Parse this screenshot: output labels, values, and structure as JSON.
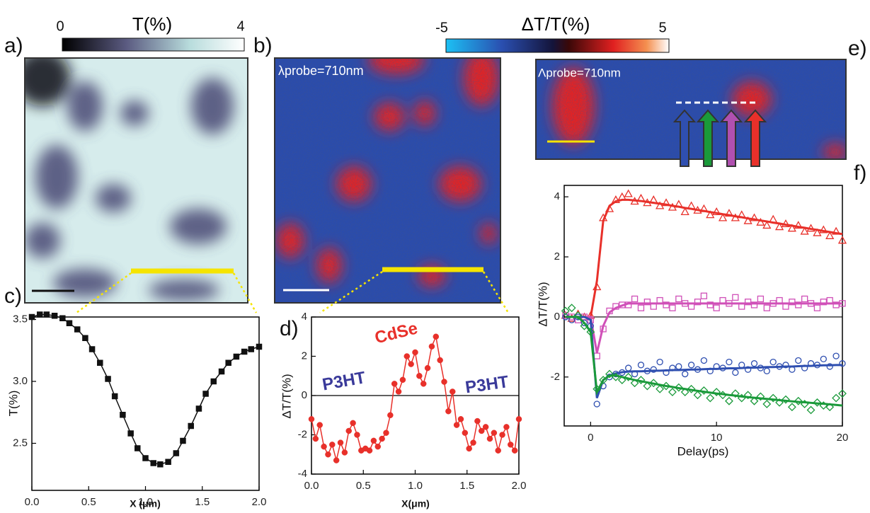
{
  "panel_labels": [
    "a)",
    "b)",
    "c)",
    "d)",
    "e)",
    "f)"
  ],
  "colorbars": [
    {
      "title": "T(%)",
      "ticks": [
        0,
        4
      ]
    },
    {
      "title": "ΔT/T(%)",
      "ticks": [
        -5,
        5
      ]
    }
  ],
  "image_labels": [
    "λprobe=710nm",
    "Λprobe=710nm"
  ],
  "chart_data": [
    {
      "type": "line",
      "xlabel": "X (μm)",
      "ylabel": "T(%)",
      "color": "#111111",
      "marker": "square",
      "marker_fill": "solid",
      "xlim": [
        0,
        2
      ],
      "ylim": [
        2.12,
        3.52
      ],
      "xticks": [
        {
          "value": 0,
          "label": "0.0"
        },
        0.5,
        {
          "value": 1,
          "label": "1.0"
        },
        1.5,
        {
          "value": 2,
          "label": "2.0"
        }
      ],
      "yticks": [
        2.5,
        {
          "value": 3,
          "label": "3.0"
        },
        3.5
      ],
      "x": [
        0.0,
        0.07,
        0.13,
        0.2,
        0.27,
        0.33,
        0.4,
        0.47,
        0.53,
        0.6,
        0.67,
        0.73,
        0.8,
        0.87,
        0.93,
        1.0,
        1.07,
        1.13,
        1.2,
        1.27,
        1.33,
        1.4,
        1.47,
        1.53,
        1.6,
        1.67,
        1.73,
        1.8,
        1.87,
        1.93,
        2.0
      ],
      "values": [
        3.52,
        3.54,
        3.54,
        3.53,
        3.51,
        3.47,
        3.42,
        3.35,
        3.26,
        3.15,
        3.02,
        2.88,
        2.73,
        2.58,
        2.46,
        2.38,
        2.34,
        2.33,
        2.35,
        2.42,
        2.52,
        2.64,
        2.78,
        2.9,
        3.0,
        3.08,
        3.15,
        3.2,
        3.24,
        3.26,
        3.28
      ]
    },
    {
      "type": "line",
      "xlabel": "X(μm)",
      "ylabel": "ΔT/T(%)",
      "color": "#e8302a",
      "marker": "circle",
      "marker_fill": "solid",
      "zero_line": true,
      "xlim": [
        0,
        2
      ],
      "ylim": [
        -4,
        4
      ],
      "xticks": [
        {
          "value": 0,
          "label": "0.0"
        },
        0.5,
        {
          "value": 1,
          "label": "1.0"
        },
        1.5,
        {
          "value": 2,
          "label": "2.0"
        }
      ],
      "yticks": [
        -4,
        -2,
        0,
        2,
        4
      ],
      "annotations": [
        {
          "text": "CdSe",
          "color": "#e8302a"
        },
        {
          "text": "P3HT",
          "color": "#3a3a9a"
        },
        {
          "text": "P3HT",
          "color": "#3a3a9a"
        }
      ],
      "x": [
        0,
        0.04,
        0.08,
        0.12,
        0.16,
        0.2,
        0.24,
        0.28,
        0.32,
        0.36,
        0.4,
        0.44,
        0.48,
        0.52,
        0.56,
        0.6,
        0.64,
        0.68,
        0.72,
        0.76,
        0.8,
        0.84,
        0.88,
        0.92,
        0.96,
        1.0,
        1.04,
        1.08,
        1.12,
        1.16,
        1.2,
        1.24,
        1.28,
        1.32,
        1.36,
        1.4,
        1.44,
        1.48,
        1.52,
        1.56,
        1.6,
        1.64,
        1.68,
        1.72,
        1.76,
        1.8,
        1.84,
        1.88,
        1.92,
        1.96,
        2.0
      ],
      "values": [
        -1.2,
        -2.2,
        -1.5,
        -2.6,
        -3.0,
        -2.5,
        -3.3,
        -2.4,
        -2.9,
        -1.8,
        -1.4,
        -2.0,
        -2.8,
        -2.7,
        -2.8,
        -2.3,
        -2.6,
        -2.2,
        -1.9,
        -1.0,
        0.6,
        0.2,
        0.8,
        2.0,
        1.6,
        2.2,
        1.0,
        0.6,
        1.4,
        2.5,
        3.0,
        1.8,
        0.7,
        -0.8,
        0.2,
        -1.5,
        -1.2,
        -1.9,
        -2.7,
        -2.4,
        -1.3,
        -1.8,
        -1.6,
        -2.2,
        -1.9,
        -2.8,
        -2.0,
        -1.6,
        -2.5,
        -2.8,
        -1.2
      ]
    },
    {
      "type": "scatter",
      "xlabel": "Delay(ps)",
      "ylabel": "ΔT/T(%)",
      "marker_fill": "open",
      "zero_line": true,
      "xlim": [
        -2.1,
        20
      ],
      "ylim": [
        -3.63,
        4.38
      ],
      "xticks": [
        0,
        10,
        20
      ],
      "yticks": [
        -2,
        0,
        2,
        4
      ],
      "x": [
        -2,
        -1.5,
        -1,
        -0.5,
        0,
        0.5,
        1,
        1.5,
        2,
        2.5,
        3,
        3.5,
        4,
        4.5,
        5,
        5.5,
        6,
        6.5,
        7,
        7.5,
        8,
        8.5,
        9,
        9.5,
        10,
        10.5,
        11,
        11.5,
        12,
        12.5,
        13,
        13.5,
        14,
        14.5,
        15,
        15.5,
        16,
        16.5,
        17,
        17.5,
        18,
        18.5,
        19,
        19.5,
        20
      ],
      "series": [
        {
          "color": "#e8302a",
          "marker": "triangle",
          "values": [
            0.05,
            -0.05,
            0.1,
            0,
            0.05,
            1.0,
            3.3,
            3.6,
            3.9,
            4.0,
            4.1,
            3.85,
            3.95,
            3.8,
            3.9,
            3.7,
            3.8,
            3.65,
            3.75,
            3.5,
            3.7,
            3.55,
            3.6,
            3.4,
            3.5,
            3.3,
            3.45,
            3.3,
            3.4,
            3.2,
            3.3,
            3.15,
            3.05,
            3.25,
            3.0,
            3.1,
            2.95,
            3.05,
            2.85,
            2.95,
            2.8,
            2.9,
            2.7,
            2.85,
            2.55
          ],
          "fit": [
            0,
            0,
            0,
            0,
            0,
            1.2,
            3.2,
            3.7,
            3.85,
            3.9,
            3.9,
            3.88,
            3.86,
            3.83,
            3.8,
            3.77,
            3.74,
            3.7,
            3.67,
            3.63,
            3.6,
            3.56,
            3.53,
            3.49,
            3.46,
            3.42,
            3.39,
            3.35,
            3.32,
            3.28,
            3.25,
            3.21,
            3.18,
            3.14,
            3.11,
            3.07,
            3.04,
            3.0,
            2.97,
            2.93,
            2.9,
            2.86,
            2.83,
            2.79,
            2.76
          ]
        },
        {
          "color": "#d050b8",
          "marker": "square",
          "values": [
            0.05,
            0,
            -0.1,
            0,
            -0.1,
            -1.3,
            -0.4,
            0.2,
            0.35,
            0.4,
            0.4,
            0.6,
            0.3,
            0.5,
            0.35,
            0.55,
            0.4,
            0.3,
            0.6,
            0.45,
            0.35,
            0.5,
            0.7,
            0.4,
            0.3,
            0.55,
            0.45,
            0.65,
            0.35,
            0.5,
            0.4,
            0.6,
            0.3,
            0.45,
            0.55,
            0.35,
            0.5,
            0.4,
            0.6,
            0.45,
            0.3,
            0.5,
            0.55,
            0.4,
            0.45
          ],
          "fit": [
            0,
            0,
            0,
            0,
            0,
            -1.2,
            -0.3,
            0.15,
            0.3,
            0.38,
            0.45,
            0.45,
            0.45,
            0.45,
            0.45,
            0.45,
            0.45,
            0.45,
            0.45,
            0.45,
            0.45,
            0.45,
            0.45,
            0.45,
            0.45,
            0.45,
            0.45,
            0.45,
            0.45,
            0.45,
            0.45,
            0.45,
            0.45,
            0.45,
            0.45,
            0.45,
            0.45,
            0.45,
            0.45,
            0.45,
            0.45,
            0.45,
            0.45,
            0.45,
            0.45
          ]
        },
        {
          "color": "#2f4fb0",
          "marker": "circle",
          "values": [
            0,
            -0.1,
            0,
            -0.2,
            -0.3,
            -2.9,
            -2.3,
            -2.0,
            -1.9,
            -1.85,
            -1.7,
            -1.9,
            -1.6,
            -1.8,
            -1.75,
            -1.5,
            -1.85,
            -1.7,
            -1.65,
            -1.9,
            -1.6,
            -1.75,
            -1.45,
            -1.8,
            -1.65,
            -1.7,
            -1.5,
            -1.85,
            -1.6,
            -1.75,
            -1.55,
            -1.7,
            -1.8,
            -1.5,
            -1.65,
            -1.6,
            -1.75,
            -1.45,
            -1.7,
            -1.55,
            -1.6,
            -1.4,
            -1.65,
            -1.3,
            -1.55
          ],
          "fit": [
            0,
            0,
            0,
            0,
            -0.1,
            -2.7,
            -2.1,
            -1.95,
            -1.88,
            -1.84,
            -1.82,
            -1.81,
            -1.81,
            -1.8,
            -1.79,
            -1.79,
            -1.78,
            -1.77,
            -1.77,
            -1.76,
            -1.75,
            -1.75,
            -1.74,
            -1.73,
            -1.73,
            -1.72,
            -1.71,
            -1.71,
            -1.7,
            -1.69,
            -1.69,
            -1.68,
            -1.67,
            -1.67,
            -1.66,
            -1.65,
            -1.65,
            -1.64,
            -1.63,
            -1.63,
            -1.62,
            -1.61,
            -1.61,
            -1.6,
            -1.6
          ]
        },
        {
          "color": "#1a9a3a",
          "marker": "diamond",
          "values": [
            0.2,
            0.3,
            0.05,
            -0.3,
            -0.5,
            -2.4,
            -2.1,
            -1.9,
            -2.0,
            -2.1,
            -2.0,
            -2.2,
            -2.1,
            -2.3,
            -2.2,
            -2.4,
            -2.3,
            -2.5,
            -2.35,
            -2.5,
            -2.4,
            -2.6,
            -2.45,
            -2.7,
            -2.5,
            -2.6,
            -2.8,
            -2.55,
            -2.7,
            -2.6,
            -2.8,
            -2.65,
            -2.9,
            -2.7,
            -2.85,
            -2.75,
            -3.0,
            -2.8,
            -2.9,
            -3.1,
            -2.85,
            -2.95,
            -3.0,
            -2.7,
            -2.55
          ],
          "fit": [
            0,
            0,
            0,
            -0.2,
            -0.5,
            -2.5,
            -2.1,
            -1.95,
            -1.95,
            -2.0,
            -2.05,
            -2.1,
            -2.14,
            -2.18,
            -2.22,
            -2.26,
            -2.3,
            -2.33,
            -2.37,
            -2.4,
            -2.43,
            -2.46,
            -2.49,
            -2.52,
            -2.55,
            -2.57,
            -2.6,
            -2.62,
            -2.65,
            -2.67,
            -2.69,
            -2.71,
            -2.73,
            -2.75,
            -2.77,
            -2.79,
            -2.81,
            -2.83,
            -2.84,
            -2.86,
            -2.88,
            -2.89,
            -2.91,
            -2.93,
            -2.95
          ]
        }
      ]
    }
  ]
}
